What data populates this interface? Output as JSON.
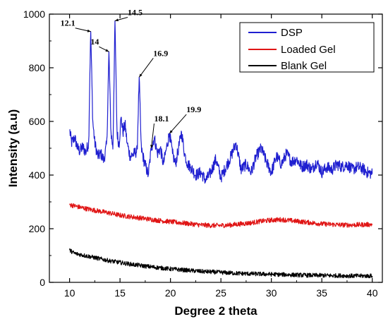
{
  "chart_data": {
    "type": "line",
    "xlabel": "Degree 2 theta",
    "ylabel": "Intensity (a.u)",
    "xlim": [
      8,
      41
    ],
    "ylim": [
      0,
      1000
    ],
    "xticks": [
      10,
      15,
      20,
      25,
      30,
      35,
      40
    ],
    "yticks": [
      0,
      200,
      400,
      600,
      800,
      1000
    ],
    "grid": false,
    "legend_position": "top-right",
    "series": [
      {
        "name": "DSP",
        "color": "#1f1fd0",
        "points": [
          [
            10.0,
            570
          ],
          [
            10.2,
            520
          ],
          [
            10.5,
            540
          ],
          [
            10.8,
            500
          ],
          [
            11.0,
            490
          ],
          [
            11.3,
            505
          ],
          [
            11.6,
            485
          ],
          [
            11.9,
            520
          ],
          [
            12.0,
            760
          ],
          [
            12.1,
            935
          ],
          [
            12.3,
            600
          ],
          [
            12.5,
            520
          ],
          [
            12.8,
            470
          ],
          [
            13.1,
            480
          ],
          [
            13.4,
            455
          ],
          [
            13.7,
            520
          ],
          [
            13.9,
            860
          ],
          [
            14.1,
            560
          ],
          [
            14.3,
            500
          ],
          [
            14.5,
            975
          ],
          [
            14.7,
            560
          ],
          [
            14.9,
            510
          ],
          [
            15.1,
            615
          ],
          [
            15.3,
            560
          ],
          [
            15.5,
            590
          ],
          [
            15.7,
            520
          ],
          [
            16.0,
            470
          ],
          [
            16.4,
            480
          ],
          [
            16.7,
            490
          ],
          [
            16.9,
            765
          ],
          [
            17.1,
            500
          ],
          [
            17.4,
            450
          ],
          [
            17.8,
            400
          ],
          [
            18.1,
            500
          ],
          [
            18.4,
            540
          ],
          [
            18.7,
            480
          ],
          [
            19.0,
            500
          ],
          [
            19.3,
            440
          ],
          [
            19.6,
            500
          ],
          [
            19.9,
            555
          ],
          [
            20.2,
            480
          ],
          [
            20.5,
            440
          ],
          [
            20.8,
            500
          ],
          [
            21.1,
            560
          ],
          [
            21.4,
            480
          ],
          [
            21.7,
            440
          ],
          [
            22.0,
            430
          ],
          [
            22.5,
            400
          ],
          [
            23.0,
            410
          ],
          [
            23.5,
            380
          ],
          [
            24.0,
            410
          ],
          [
            24.5,
            460
          ],
          [
            25.0,
            390
          ],
          [
            25.5,
            430
          ],
          [
            26.0,
            470
          ],
          [
            26.5,
            520
          ],
          [
            27.0,
            420
          ],
          [
            27.5,
            440
          ],
          [
            28.0,
            410
          ],
          [
            28.5,
            470
          ],
          [
            29.0,
            500
          ],
          [
            29.5,
            450
          ],
          [
            30.0,
            410
          ],
          [
            30.5,
            470
          ],
          [
            31.0,
            440
          ],
          [
            31.5,
            480
          ],
          [
            32.0,
            450
          ],
          [
            32.5,
            460
          ],
          [
            33.0,
            430
          ],
          [
            33.5,
            440
          ],
          [
            34.0,
            420
          ],
          [
            34.5,
            450
          ],
          [
            35.0,
            410
          ],
          [
            35.5,
            430
          ],
          [
            36.0,
            420
          ],
          [
            36.5,
            440
          ],
          [
            37.0,
            430
          ],
          [
            37.5,
            440
          ],
          [
            38.0,
            420
          ],
          [
            38.5,
            430
          ],
          [
            39.0,
            425
          ],
          [
            39.5,
            410
          ],
          [
            40.0,
            405
          ]
        ]
      },
      {
        "name": "Loaded Gel",
        "color": "#e01515",
        "points": [
          [
            10.0,
            290
          ],
          [
            11.0,
            280
          ],
          [
            12.0,
            272
          ],
          [
            13.0,
            265
          ],
          [
            14.0,
            258
          ],
          [
            15.0,
            250
          ],
          [
            16.0,
            245
          ],
          [
            17.0,
            240
          ],
          [
            18.0,
            235
          ],
          [
            19.0,
            230
          ],
          [
            20.0,
            226
          ],
          [
            21.0,
            222
          ],
          [
            22.0,
            218
          ],
          [
            23.0,
            214
          ],
          [
            24.0,
            212
          ],
          [
            25.0,
            212
          ],
          [
            26.0,
            214
          ],
          [
            27.0,
            218
          ],
          [
            28.0,
            222
          ],
          [
            29.0,
            228
          ],
          [
            30.0,
            232
          ],
          [
            31.0,
            234
          ],
          [
            32.0,
            230
          ],
          [
            33.0,
            226
          ],
          [
            34.0,
            222
          ],
          [
            35.0,
            218
          ],
          [
            36.0,
            216
          ],
          [
            37.0,
            214
          ],
          [
            38.0,
            214
          ],
          [
            39.0,
            215
          ],
          [
            40.0,
            216
          ]
        ]
      },
      {
        "name": "Blank Gel",
        "color": "#000000",
        "points": [
          [
            10.0,
            120
          ],
          [
            10.5,
            108
          ],
          [
            11.0,
            104
          ],
          [
            12.0,
            96
          ],
          [
            13.0,
            88
          ],
          [
            14.0,
            80
          ],
          [
            15.0,
            74
          ],
          [
            16.0,
            68
          ],
          [
            17.0,
            63
          ],
          [
            18.0,
            58
          ],
          [
            19.0,
            54
          ],
          [
            20.0,
            50
          ],
          [
            21.0,
            47
          ],
          [
            22.0,
            44
          ],
          [
            23.0,
            41
          ],
          [
            24.0,
            39
          ],
          [
            25.0,
            37
          ],
          [
            26.0,
            35
          ],
          [
            27.0,
            33
          ],
          [
            28.0,
            32
          ],
          [
            29.0,
            31
          ],
          [
            30.0,
            30
          ],
          [
            31.0,
            29
          ],
          [
            32.0,
            28
          ],
          [
            33.0,
            27
          ],
          [
            34.0,
            26
          ],
          [
            35.0,
            26
          ],
          [
            36.0,
            25
          ],
          [
            37.0,
            25
          ],
          [
            38.0,
            24
          ],
          [
            39.0,
            24
          ],
          [
            40.0,
            24
          ]
        ]
      }
    ],
    "noise": {
      "DSP": 22,
      "Loaded Gel": 9,
      "Blank Gel": 8
    },
    "annotations": [
      {
        "text": "12.1",
        "x": 12.1,
        "y": 935
      },
      {
        "text": "14",
        "x": 13.9,
        "y": 860
      },
      {
        "text": "14.5",
        "x": 14.5,
        "y": 975
      },
      {
        "text": "16.9",
        "x": 16.9,
        "y": 765
      },
      {
        "text": "18.1",
        "x": 18.1,
        "y": 500
      },
      {
        "text": "19.9",
        "x": 19.9,
        "y": 555
      }
    ]
  }
}
